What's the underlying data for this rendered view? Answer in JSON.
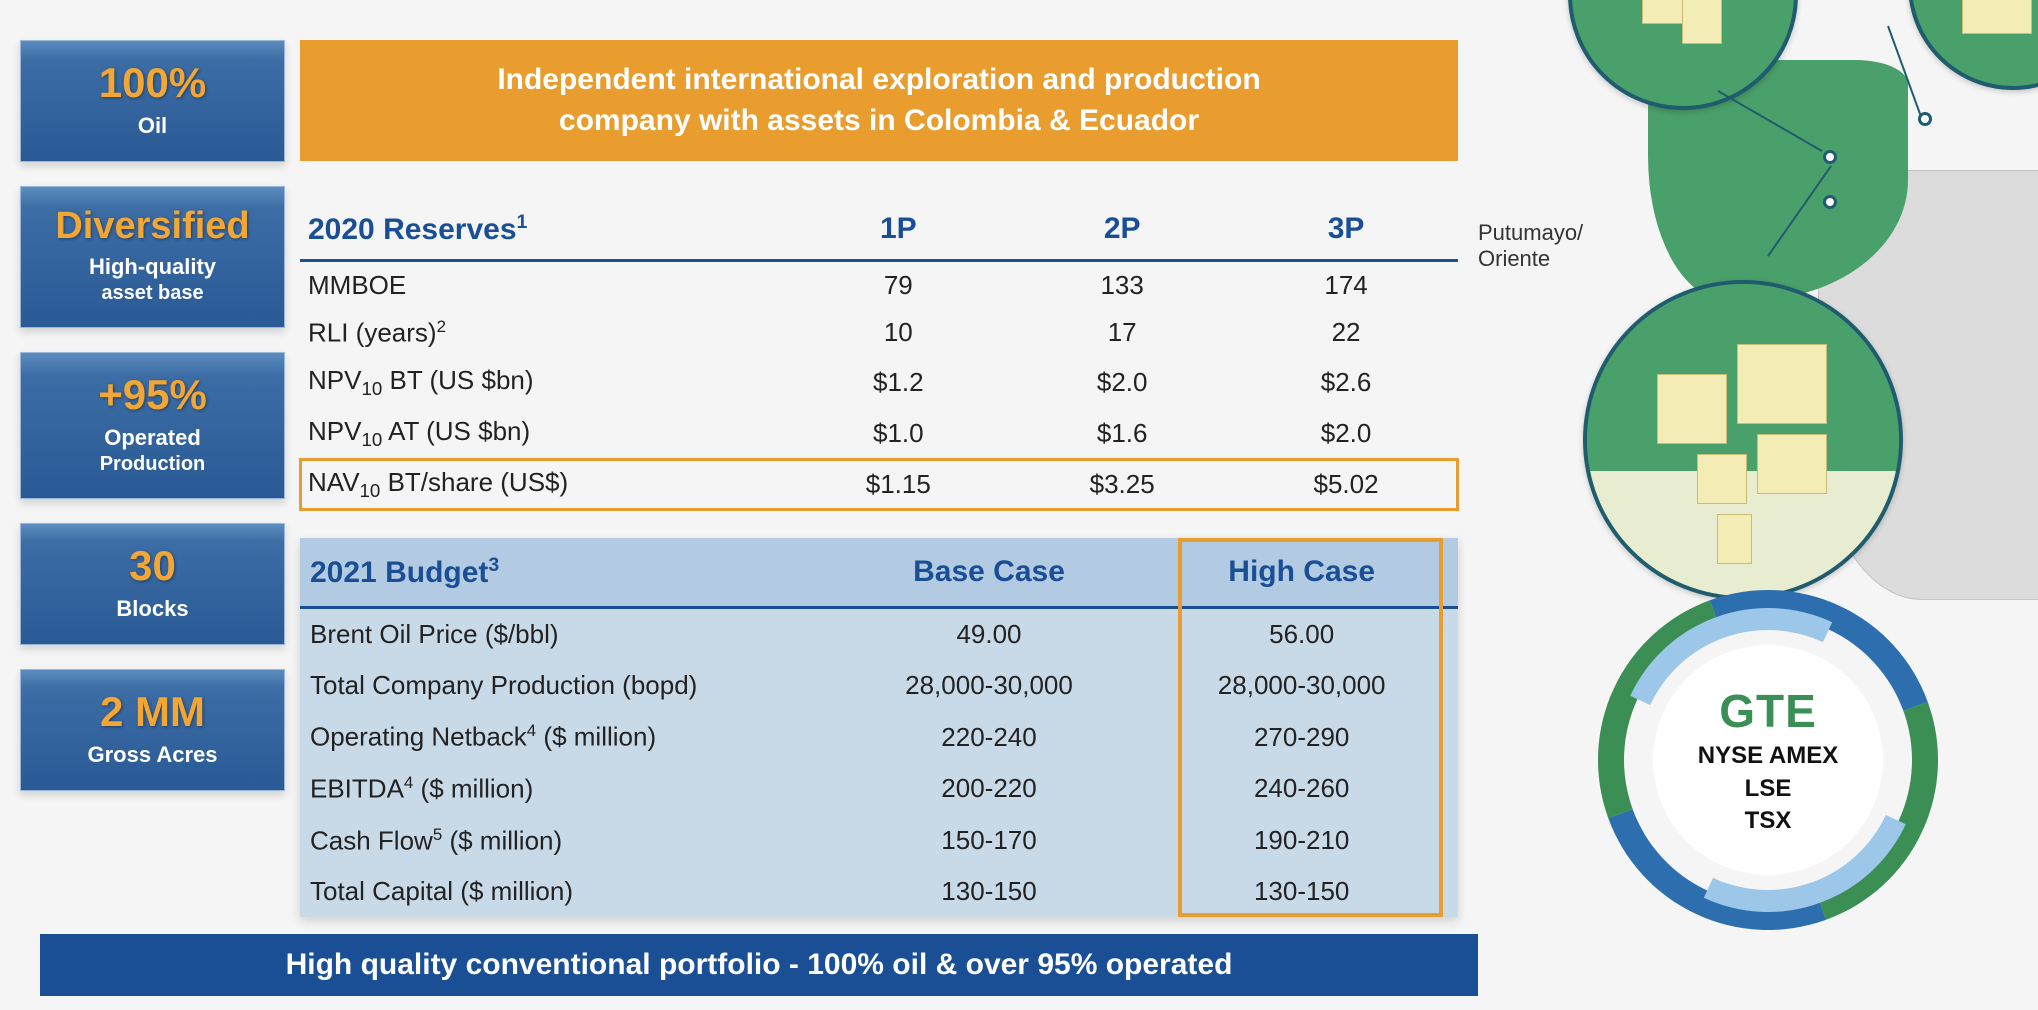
{
  "colors": {
    "orange": "#e89d2e",
    "blue_dark": "#1a4f95",
    "blue_box_top": "#5c8dc0",
    "blue_box_bottom": "#2a5a95",
    "budget_bg": "#c8d9e8",
    "budget_head": "#b3cbe2",
    "map_green": "#4aa06a",
    "map_grey": "#d8d8d8",
    "block_fill": "#f3ecb4",
    "zoom_border": "#1e5c6e",
    "badge_blue": "#2d6fae",
    "badge_green": "#3b8f55",
    "badge_lightblue": "#9cc7e8",
    "text_dark": "#222222"
  },
  "left_stats": [
    {
      "big": "100%",
      "sub": "Oil",
      "sub2": ""
    },
    {
      "big": "Diversified",
      "sub": "High-quality",
      "sub2": "asset base"
    },
    {
      "big": "+95%",
      "sub": "Operated",
      "sub2": "Production"
    },
    {
      "big": "30",
      "sub": "Blocks",
      "sub2": ""
    },
    {
      "big": "2 MM",
      "sub": "Gross Acres",
      "sub2": ""
    }
  ],
  "banner_line1": "Independent international exploration and production",
  "banner_line2": "company with assets in Colombia & Ecuador",
  "reserves": {
    "title": "2020 Reserves",
    "title_sup": "1",
    "columns": [
      "1P",
      "2P",
      "3P"
    ],
    "rows": [
      {
        "label": "MMBOE",
        "sup": "",
        "sub": "",
        "v": [
          "79",
          "133",
          "174"
        ]
      },
      {
        "label": "RLI (years)",
        "sup": "2",
        "sub": "",
        "v": [
          "10",
          "17",
          "22"
        ]
      },
      {
        "label": "NPV",
        "sub": "10",
        "label2": " BT (US $bn)",
        "sup": "",
        "v": [
          "$1.2",
          "$2.0",
          "$2.6"
        ]
      },
      {
        "label": "NPV",
        "sub": "10",
        "label2": " AT (US $bn)",
        "sup": "",
        "v": [
          "$1.0",
          "$1.6",
          "$2.0"
        ]
      },
      {
        "label": "NAV",
        "sub": "10",
        "label2": " BT/share (US$)",
        "sup": "",
        "v": [
          "$1.15",
          "$3.25",
          "$5.02"
        ],
        "highlight": true
      }
    ]
  },
  "budget": {
    "title": "2021 Budget",
    "title_sup": "3",
    "columns": [
      "Base Case",
      "High Case"
    ],
    "rows": [
      {
        "label": "Brent Oil Price ($/bbl)",
        "sup": "",
        "v": [
          "49.00",
          "56.00"
        ]
      },
      {
        "label": "Total Company Production (bopd)",
        "sup": "",
        "v": [
          "28,000-30,000",
          "28,000-30,000"
        ]
      },
      {
        "label": "Operating Netback",
        "sup": "4",
        "label2": " ($ million)",
        "v": [
          "220-240",
          "270-290"
        ]
      },
      {
        "label": "EBITDA",
        "sup": "4",
        "label2": " ($ million)",
        "v": [
          "200-220",
          "240-260"
        ]
      },
      {
        "label": "Cash Flow",
        "sup": "5",
        "label2": " ($ million)",
        "v": [
          "150-170",
          "190-210"
        ]
      },
      {
        "label": "Total Capital ($ million)",
        "sup": "",
        "v": [
          "130-150",
          "130-150"
        ]
      }
    ]
  },
  "map_label": "Putumayo/\nOriente",
  "badge": {
    "ticker": "GTE",
    "exchanges": [
      "NYSE AMEX",
      "LSE",
      "TSX"
    ]
  },
  "bottom_bar": "High quality conventional portfolio - 100% oil & over 95% operated"
}
